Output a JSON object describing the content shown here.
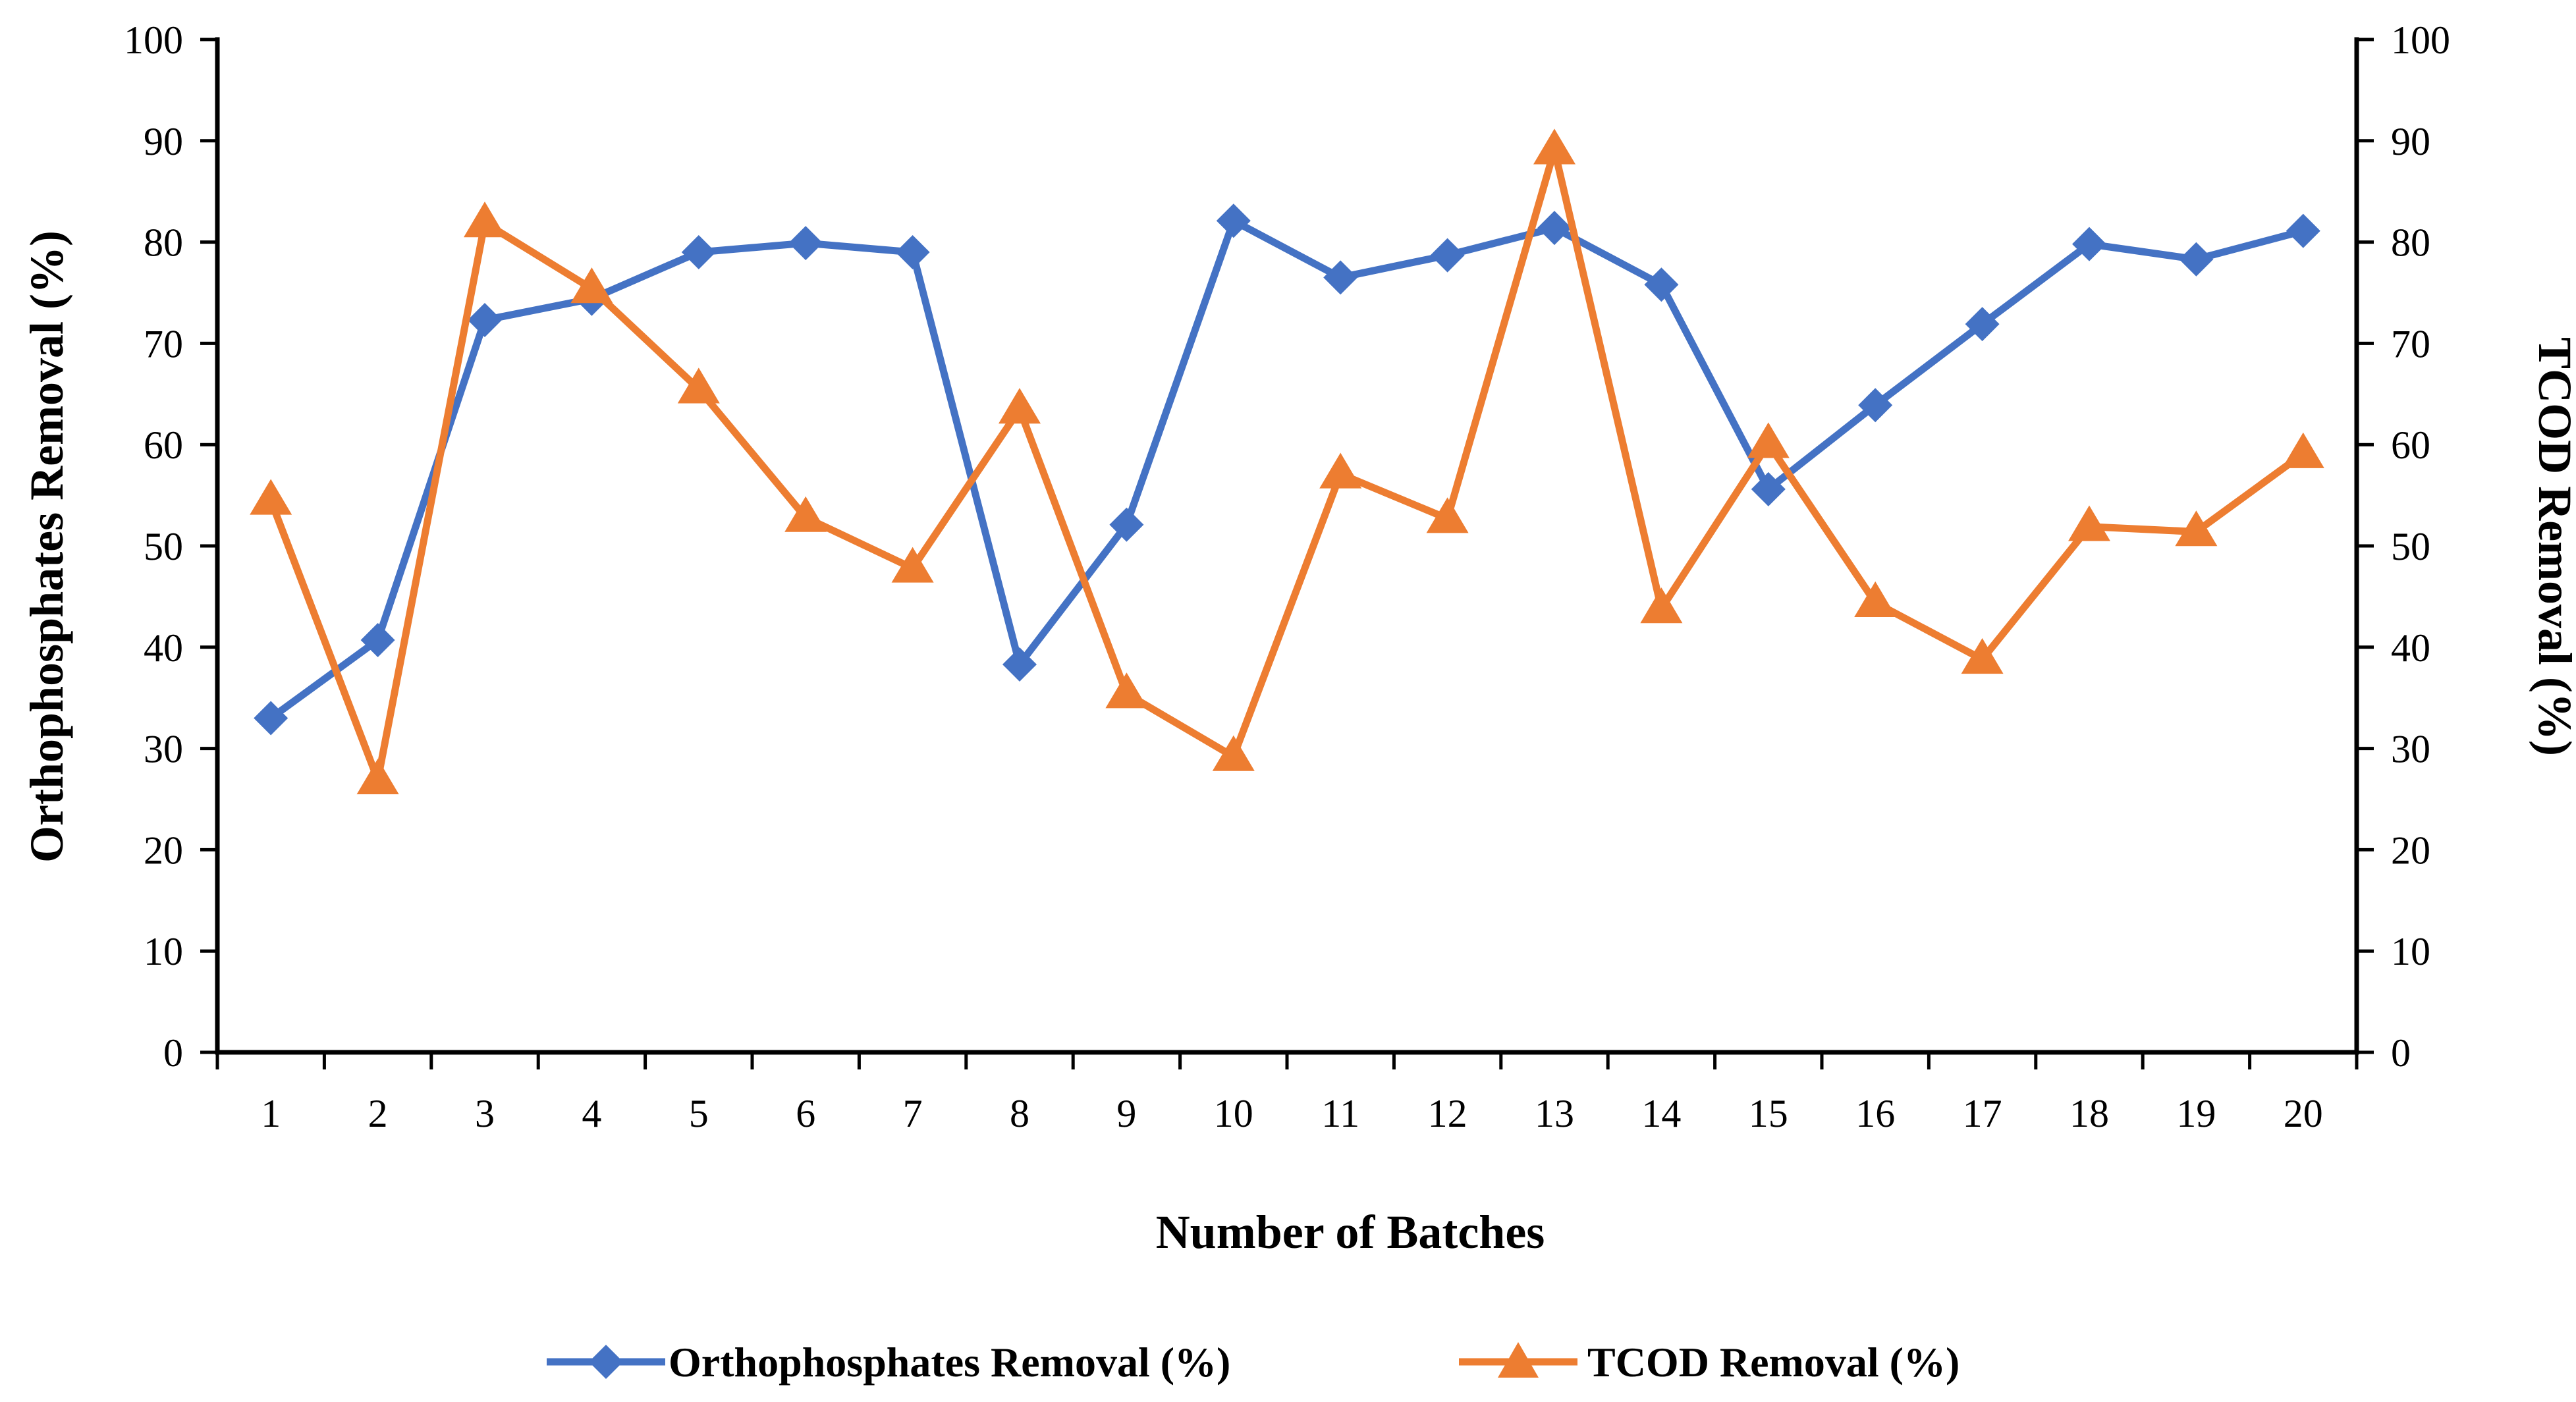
{
  "chart_data": {
    "type": "line",
    "title": "",
    "xlabel": "Number of Batches",
    "ylabel_left": "Orthophosphates Removal (%)",
    "ylabel_right": "TCOD Removal (%)",
    "ylim_left": [
      0,
      100
    ],
    "ylim_right": [
      0,
      100
    ],
    "yticks": [
      "0",
      "10",
      "20",
      "30",
      "40",
      "50",
      "60",
      "70",
      "80",
      "90",
      "100"
    ],
    "categories": [
      "1",
      "2",
      "3",
      "4",
      "5",
      "6",
      "7",
      "8",
      "9",
      "10",
      "11",
      "12",
      "13",
      "14",
      "15",
      "16",
      "17",
      "18",
      "19",
      "20"
    ],
    "grid": false,
    "legend_position": "bottom",
    "series": [
      {
        "name": "Orthophosphates Removal (%)",
        "axis": "left",
        "marker": "diamond",
        "color": "#4472C4",
        "values": [
          33,
          40.7,
          72.3,
          74.4,
          79,
          79.9,
          79,
          38.3,
          52.1,
          82.1,
          76.5,
          78.7,
          81.4,
          75.8,
          55.6,
          63.9,
          71.9,
          79.8,
          78.3,
          81.1
        ]
      },
      {
        "name": "TCOD Removal (%)",
        "axis": "right",
        "marker": "triangle",
        "color": "#ED7D31",
        "values": [
          54.5,
          26.9,
          81.9,
          75.4,
          65.5,
          52.8,
          47.8,
          63.5,
          35.4,
          29.2,
          57.1,
          52.7,
          89.1,
          43.8,
          60.1,
          44.4,
          38.8,
          51.9,
          51.4,
          59.1
        ]
      }
    ]
  }
}
